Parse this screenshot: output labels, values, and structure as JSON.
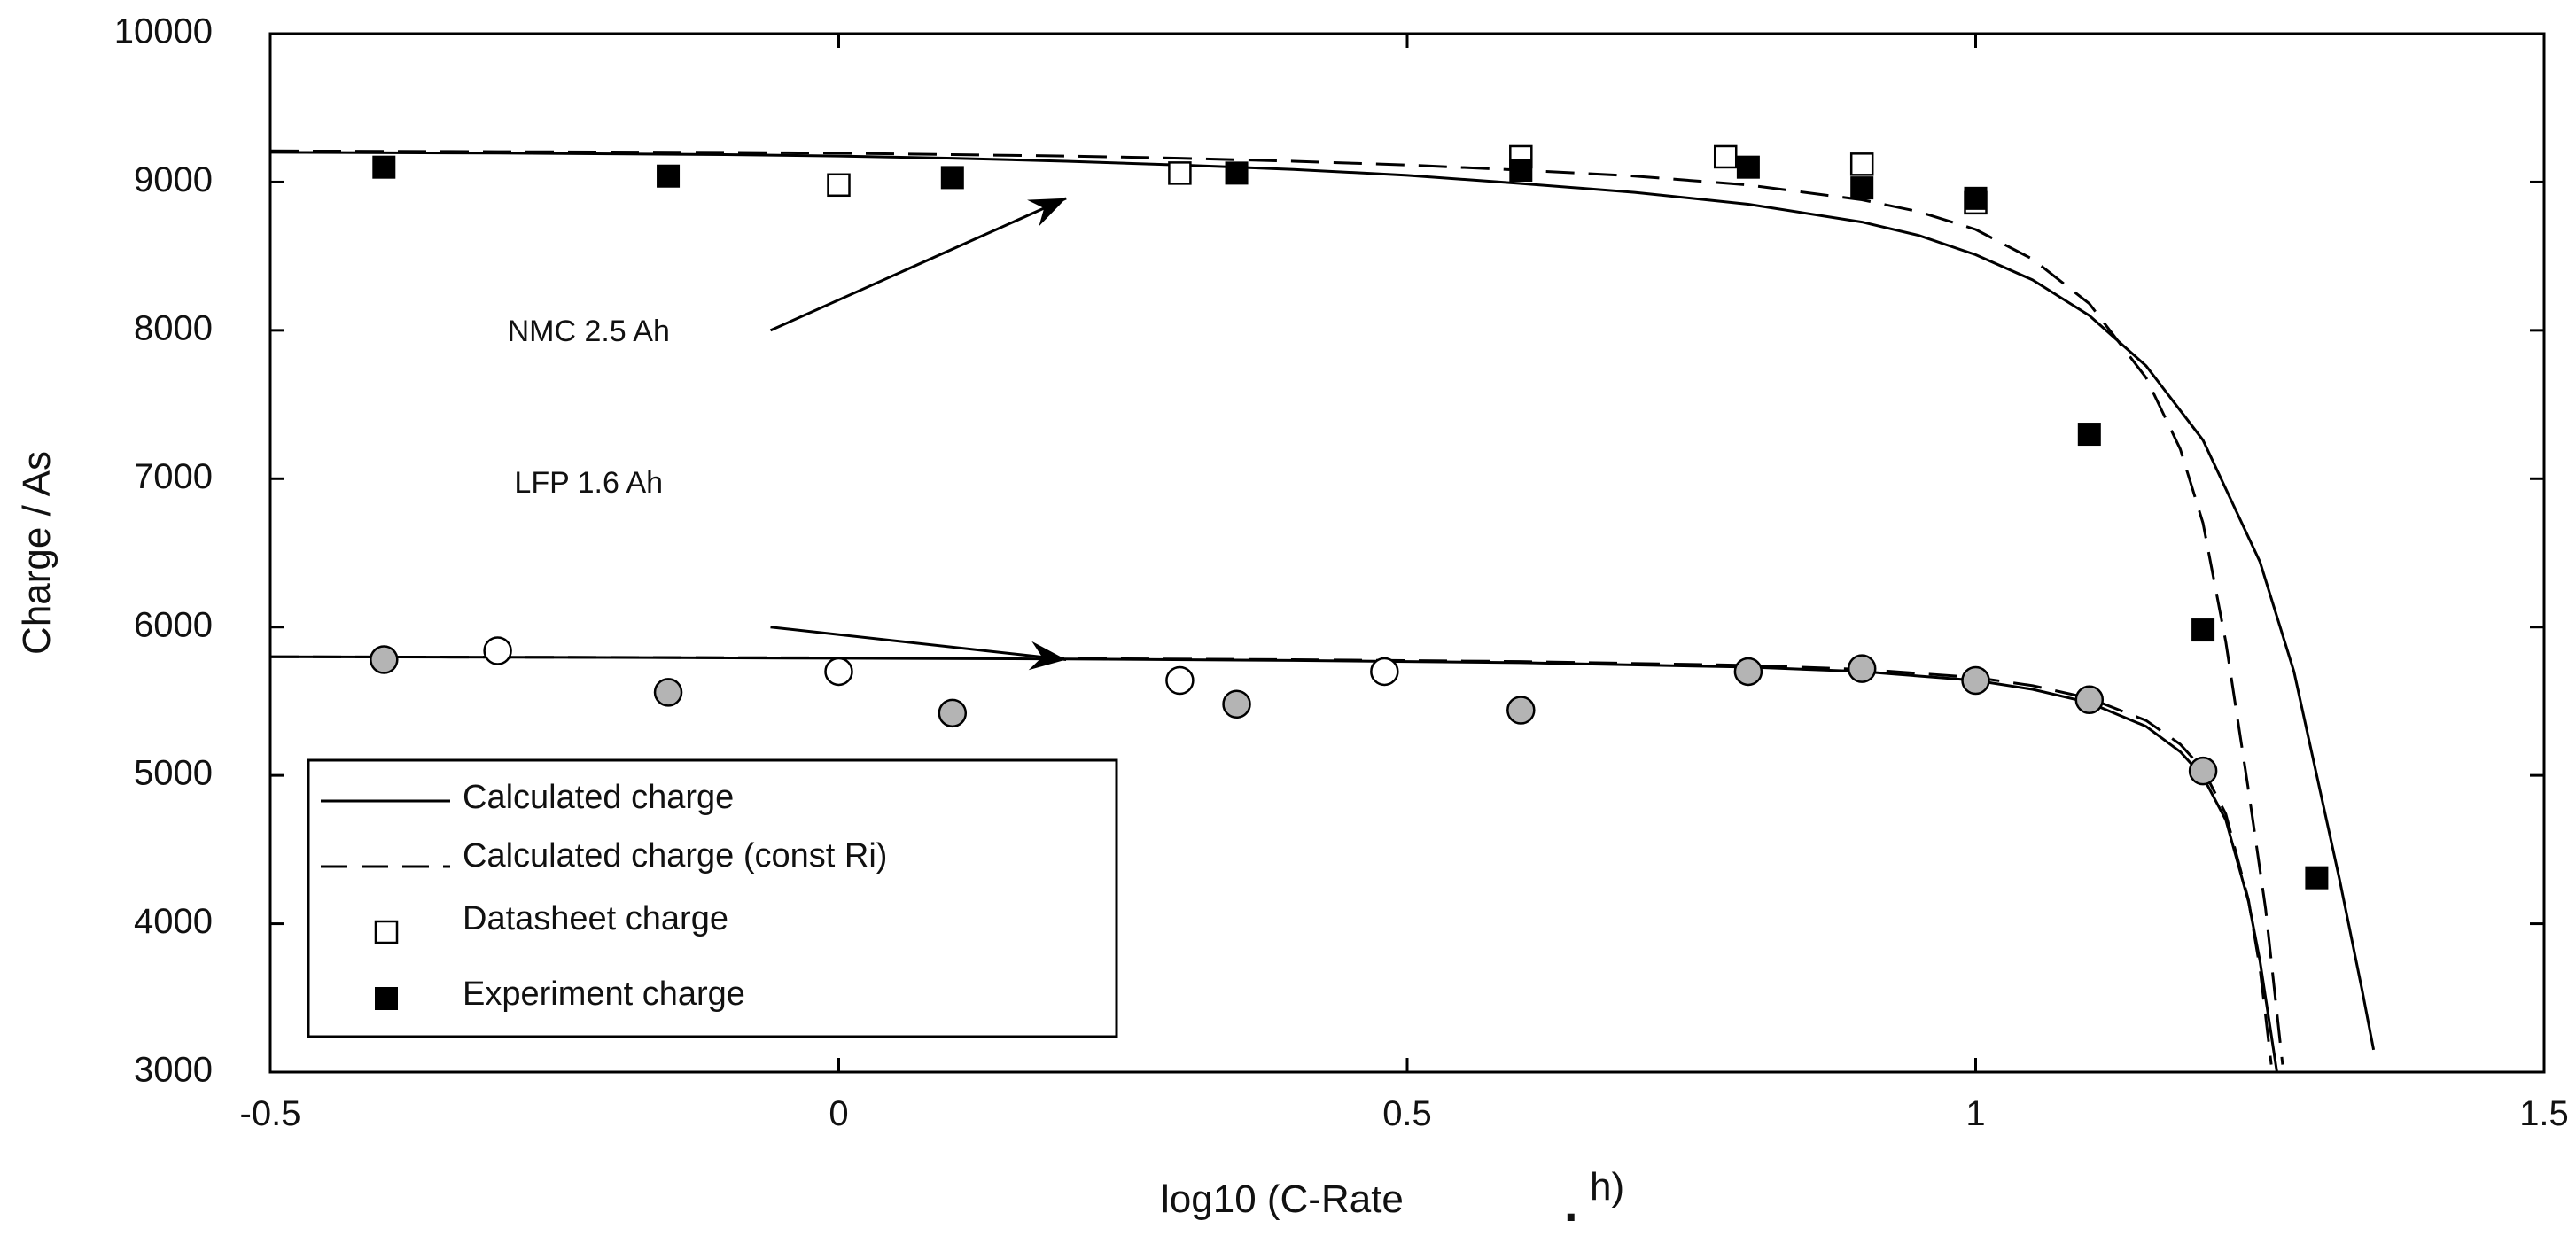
{
  "chart_data": {
    "type": "scatter",
    "title": "",
    "xlabel": "log10 (C-Rate",
    "xlabel_dot": ".",
    "xlabel_suffix": "h)",
    "ylabel": "Charge / As",
    "xlim": [
      -0.5,
      1.5
    ],
    "ylim": [
      3000,
      10000
    ],
    "x_ticks": [
      -0.5,
      0,
      0.5,
      1,
      1.5
    ],
    "x_tick_labels": [
      "-0.5",
      "0",
      "0.5",
      "1",
      "1.5"
    ],
    "y_ticks": [
      3000,
      4000,
      5000,
      6000,
      7000,
      8000,
      9000,
      10000
    ],
    "y_tick_labels": [
      "3000",
      "4000",
      "5000",
      "6000",
      "7000",
      "8000",
      "9000",
      "10000"
    ],
    "grid": false,
    "annotations": [
      {
        "text": "NMC 2.5 Ah",
        "label_at": [
          -0.22,
          7980
        ],
        "arrow_from": [
          -0.06,
          8000
        ],
        "arrow_to": [
          0.2,
          8890
        ]
      },
      {
        "text": "LFP 1.6 Ah",
        "label_at": [
          -0.22,
          6960
        ],
        "arrow_from": [
          -0.06,
          6000
        ],
        "arrow_to": [
          0.2,
          5780
        ]
      }
    ],
    "legend": {
      "position": "bottom-left",
      "entries": [
        {
          "label": "Calculated charge",
          "style": "solid-line"
        },
        {
          "label": "Calculated charge (const Ri)",
          "style": "dashed-line"
        },
        {
          "label": "Datasheet charge",
          "style": "open-square"
        },
        {
          "label": "Experiment charge",
          "style": "filled-square"
        }
      ]
    },
    "series": [
      {
        "name": "NMC Calculated charge",
        "style": "solid",
        "x": [
          -0.5,
          -0.3,
          -0.1,
          0,
          0.1,
          0.2,
          0.3,
          0.4,
          0.5,
          0.6,
          0.7,
          0.8,
          0.9,
          0.95,
          1.0,
          1.05,
          1.1,
          1.15,
          1.2,
          1.25,
          1.28,
          1.3,
          1.32,
          1.34,
          1.35
        ],
        "y": [
          9200,
          9195,
          9185,
          9175,
          9160,
          9140,
          9115,
          9085,
          9045,
          8990,
          8930,
          8850,
          8730,
          8640,
          8510,
          8340,
          8100,
          7760,
          7260,
          6440,
          5700,
          5000,
          4300,
          3550,
          3150
        ]
      },
      {
        "name": "NMC Calculated charge (const Ri)",
        "style": "dashed",
        "x": [
          -0.5,
          -0.3,
          -0.1,
          0,
          0.1,
          0.2,
          0.3,
          0.4,
          0.5,
          0.6,
          0.7,
          0.8,
          0.9,
          0.95,
          1.0,
          1.05,
          1.1,
          1.15,
          1.18,
          1.2,
          1.22,
          1.24,
          1.255,
          1.265,
          1.27
        ],
        "y": [
          9210,
          9205,
          9200,
          9195,
          9185,
          9175,
          9160,
          9140,
          9115,
          9080,
          9040,
          8980,
          8880,
          8800,
          8680,
          8480,
          8180,
          7680,
          7200,
          6700,
          5900,
          4900,
          4100,
          3400,
          3050
        ]
      },
      {
        "name": "LFP Calculated charge",
        "style": "solid",
        "x": [
          -0.5,
          -0.2,
          0,
          0.2,
          0.4,
          0.6,
          0.8,
          0.9,
          1.0,
          1.05,
          1.1,
          1.15,
          1.18,
          1.2,
          1.22,
          1.24,
          1.25,
          1.26,
          1.265
        ],
        "y": [
          5800,
          5795,
          5790,
          5785,
          5775,
          5760,
          5730,
          5700,
          5640,
          5580,
          5490,
          5330,
          5160,
          4990,
          4700,
          4150,
          3750,
          3250,
          3000
        ]
      },
      {
        "name": "LFP Calculated charge (const Ri)",
        "style": "dashed",
        "x": [
          -0.5,
          -0.2,
          0,
          0.2,
          0.4,
          0.6,
          0.8,
          0.9,
          1.0,
          1.05,
          1.1,
          1.15,
          1.18,
          1.2,
          1.22,
          1.24,
          1.25,
          1.255,
          1.26
        ],
        "y": [
          5800,
          5796,
          5792,
          5788,
          5780,
          5768,
          5742,
          5715,
          5660,
          5605,
          5520,
          5370,
          5210,
          5040,
          4740,
          4160,
          3700,
          3380,
          3050
        ]
      },
      {
        "name": "NMC Datasheet charge",
        "marker": "open-square",
        "x": [
          0,
          0.3,
          0.6,
          0.78,
          0.9,
          1.0
        ],
        "y": [
          8980,
          9060,
          9170,
          9170,
          9120,
          8860
        ]
      },
      {
        "name": "NMC Experiment charge",
        "marker": "filled-square",
        "x": [
          -0.4,
          -0.15,
          0.1,
          0.35,
          0.6,
          0.8,
          0.9,
          1.0,
          1.1,
          1.2,
          1.3
        ],
        "y": [
          9100,
          9040,
          9030,
          9060,
          9080,
          9100,
          8960,
          8890,
          7300,
          5980,
          4310
        ]
      },
      {
        "name": "LFP Datasheet charge",
        "marker": "open-circle",
        "x": [
          -0.3,
          0,
          0.3,
          0.48
        ],
        "y": [
          5840,
          5700,
          5640,
          5700
        ]
      },
      {
        "name": "LFP Experiment charge",
        "marker": "gray-circle",
        "x": [
          -0.4,
          -0.15,
          0.1,
          0.35,
          0.6,
          0.8,
          0.9,
          1.0,
          1.1,
          1.2
        ],
        "y": [
          5780,
          5560,
          5420,
          5480,
          5440,
          5700,
          5720,
          5640,
          5510,
          5030
        ]
      }
    ]
  }
}
